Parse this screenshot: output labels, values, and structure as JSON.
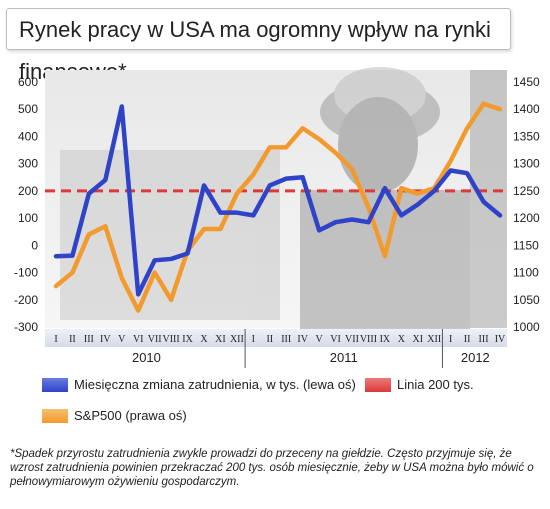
{
  "title": "Rynek pracy w USA ma ogromny wpływ na rynki finansowe*",
  "footnote": "*Spadek przyrostu zatrudnienia zwykle prowadzi do przeceny na giełdzie. Często przyjmuje się, że wzrost zatrudnienia powinien przekraczać 200 tys. osób miesięcznie, żeby w USA można było mówić o pełnowymiarowym ożywieniu gospodarczym.",
  "legend": {
    "employment": "Miesięczna zmiana zatrudnienia, w tys. (lewa oś)",
    "line200": "Linia 200 tys.",
    "sp500": "S&P500 (prawa oś)"
  },
  "colors": {
    "employment": "#2f43c8",
    "sp500": "#f29a2e",
    "line200": "#d93a3a"
  },
  "chart_data": {
    "type": "line",
    "months": [
      "I",
      "II",
      "III",
      "IV",
      "V",
      "VI",
      "VII",
      "VIII",
      "IX",
      "X",
      "XI",
      "XII",
      "I",
      "II",
      "III",
      "IV",
      "V",
      "VI",
      "VII",
      "VIII",
      "IX",
      "X",
      "XI",
      "XII",
      "I",
      "II",
      "III",
      "IV"
    ],
    "years": [
      {
        "label": "2010",
        "months": 12
      },
      {
        "label": "2011",
        "months": 12
      },
      {
        "label": "2012",
        "months": 4
      }
    ],
    "left_axis": {
      "ticks": [
        600,
        500,
        400,
        300,
        200,
        100,
        0,
        -100,
        -200,
        -300
      ],
      "ylim": [
        -300,
        600
      ]
    },
    "right_axis": {
      "ticks": [
        1450,
        1400,
        1350,
        1300,
        1250,
        1200,
        1150,
        1100,
        1050,
        1000
      ],
      "ylim": [
        1000,
        1450
      ]
    },
    "series": [
      {
        "name": "Miesięczna zmiana zatrudnienia, w tys. (lewa oś)",
        "axis": "left",
        "values": [
          -40,
          -38,
          190,
          240,
          510,
          -180,
          -55,
          -50,
          -30,
          220,
          120,
          120,
          110,
          220,
          245,
          250,
          55,
          85,
          95,
          85,
          210,
          110,
          150,
          200,
          275,
          265,
          160,
          110
        ]
      },
      {
        "name": "S&P500 (prawa oś)",
        "axis": "right",
        "values": [
          1075,
          1100,
          1170,
          1185,
          1090,
          1030,
          1100,
          1050,
          1140,
          1180,
          1180,
          1245,
          1280,
          1330,
          1330,
          1365,
          1345,
          1320,
          1290,
          1220,
          1130,
          1255,
          1245,
          1255,
          1305,
          1365,
          1410,
          1400
        ]
      },
      {
        "name": "Linia 200 tys.",
        "axis": "left",
        "constant": 200
      }
    ],
    "grid": false
  }
}
